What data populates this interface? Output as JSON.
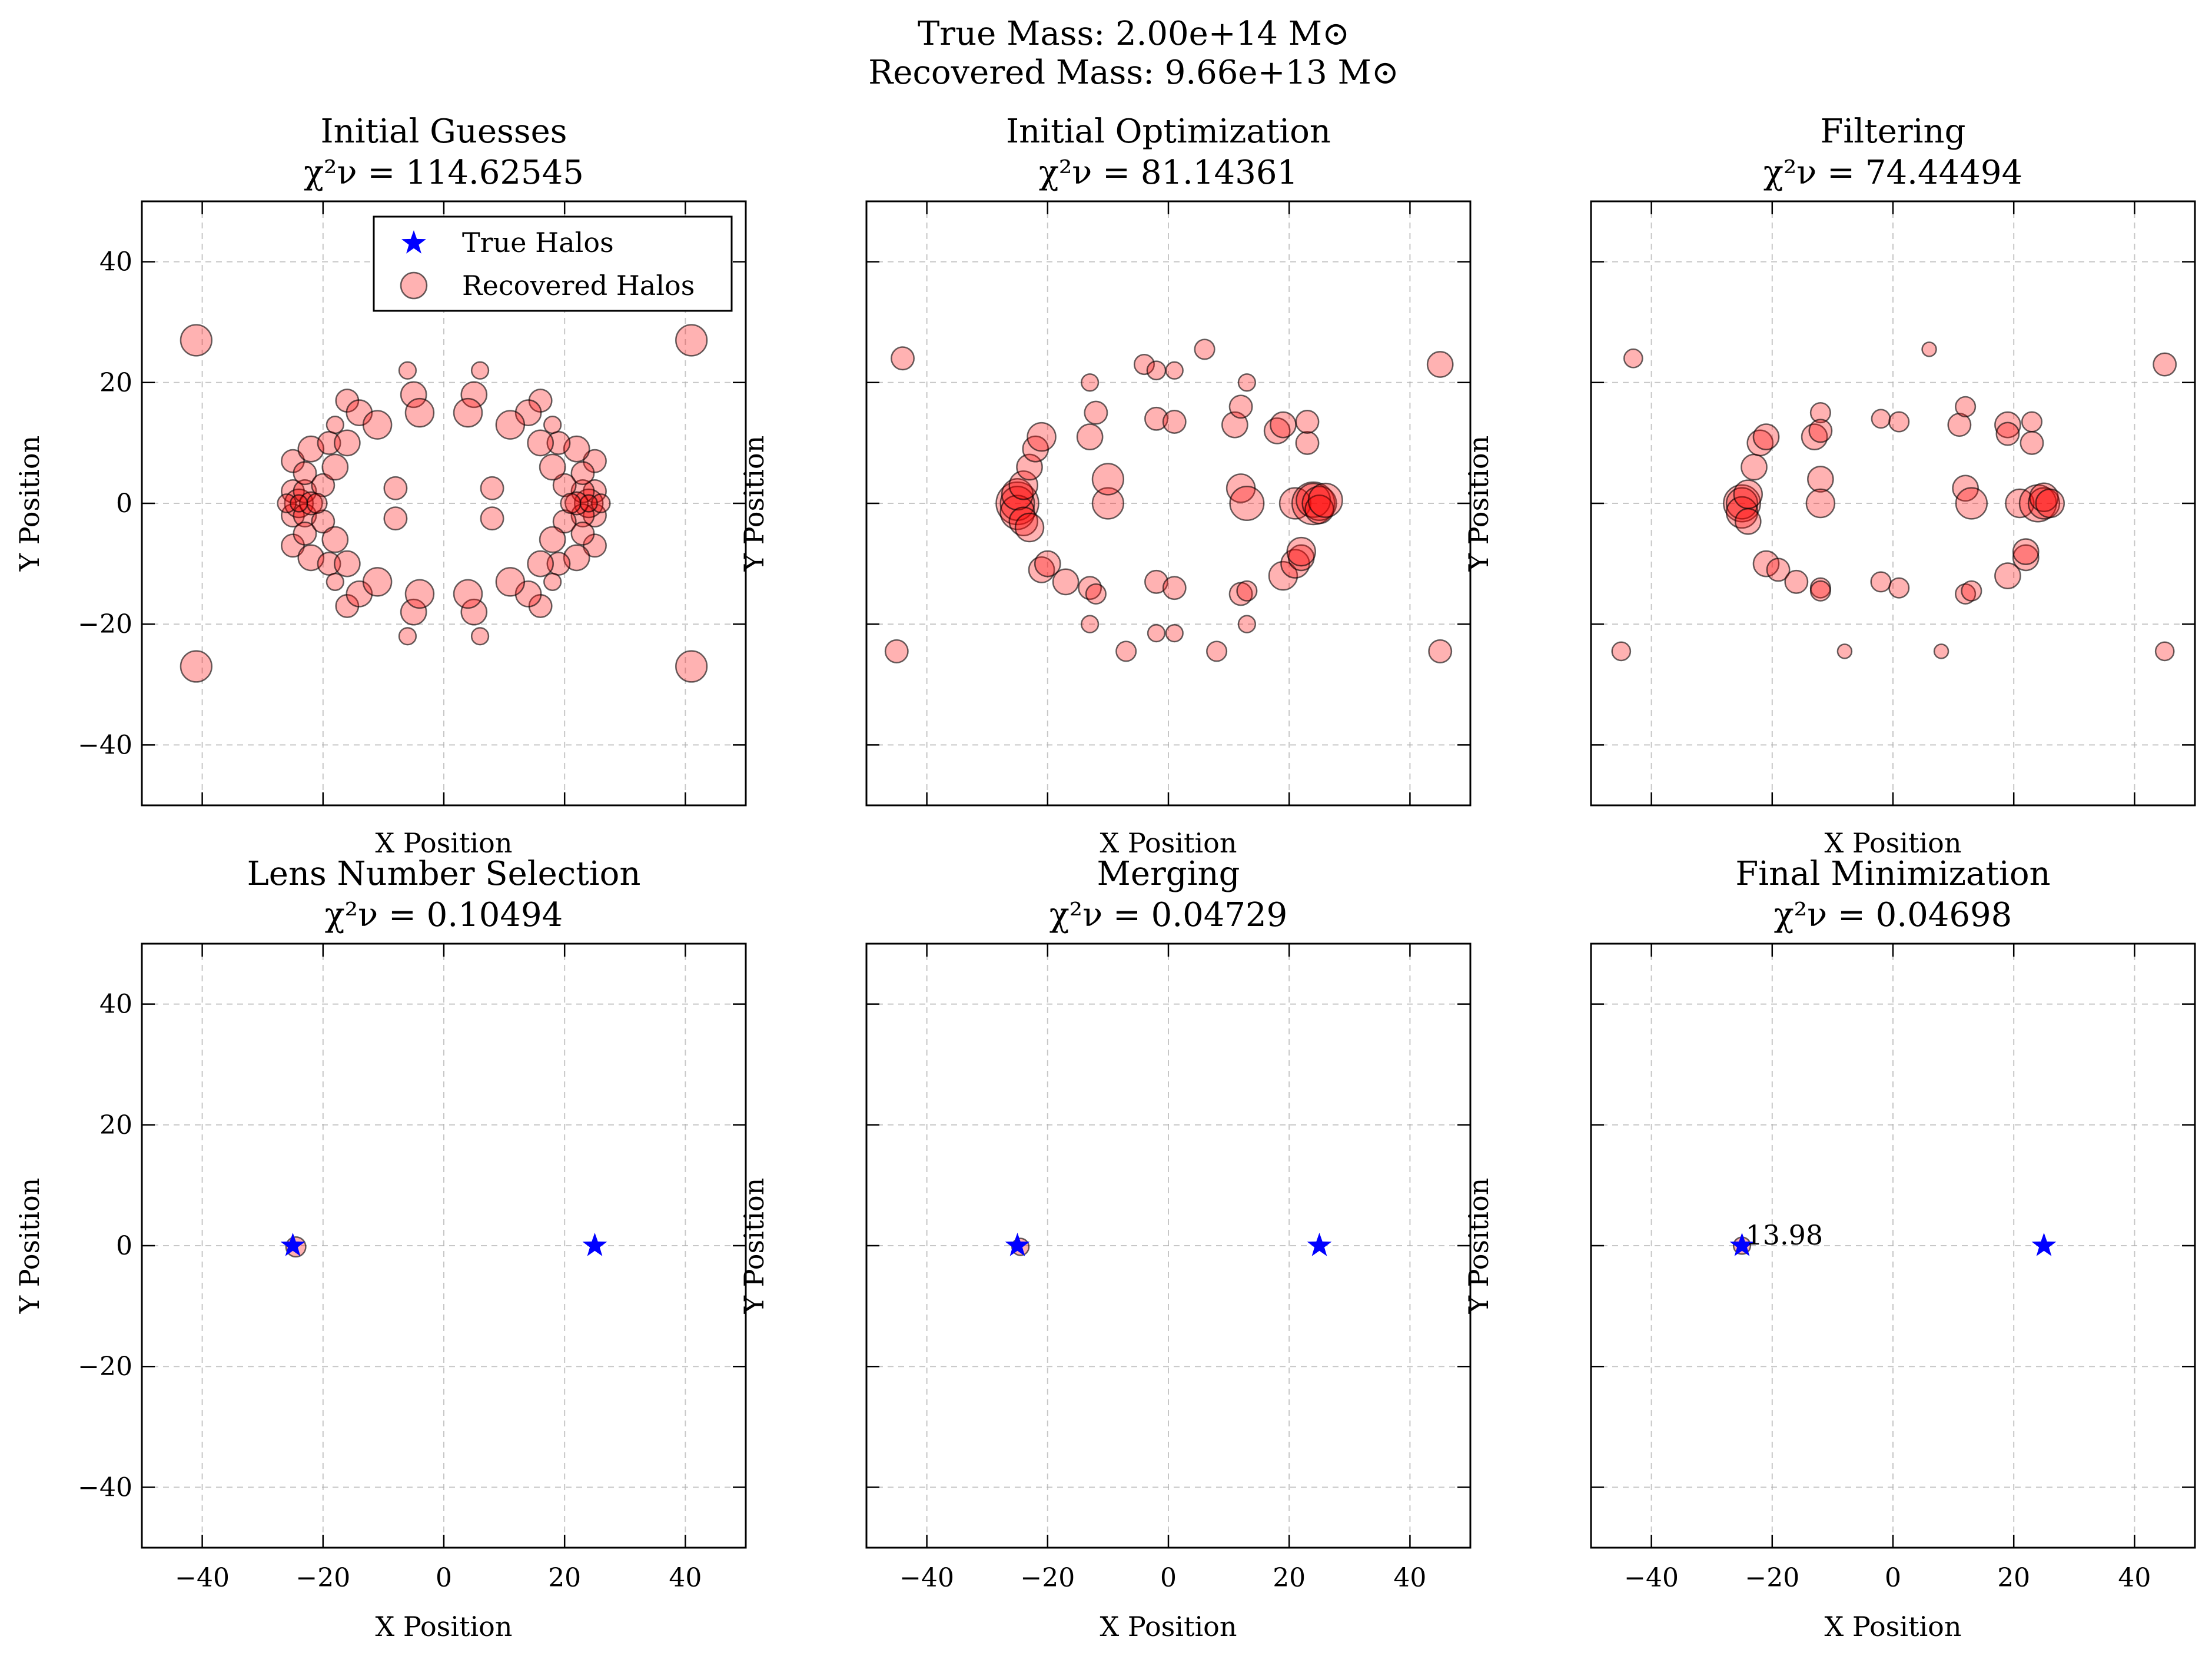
{
  "figure": {
    "suptitle_line1": "True Mass: 2.00e+14 M⊙",
    "suptitle_line2": "Recovered Mass: 9.66e+13 M⊙"
  },
  "colors": {
    "true_halo": "#0000ff",
    "recovered_halo_fill": "#ff0000",
    "recovered_halo_edge": "#000000",
    "grid": "#b0b0b0"
  },
  "legend": {
    "true_label": "True Halos",
    "recovered_label": "Recovered Halos"
  },
  "chart_data": [
    {
      "type": "scatter",
      "title": "Initial Guesses",
      "chi2_label": "χ²ν = 114.62545",
      "xlabel": "X Position",
      "ylabel": "Y Position",
      "xlim": [
        -50,
        50
      ],
      "ylim": [
        -50,
        50
      ],
      "xticks": [
        -40,
        -20,
        0,
        20,
        40
      ],
      "yticks": [
        -40,
        -20,
        0,
        20,
        40
      ],
      "show_xticklabels": false,
      "show_yticklabels": true,
      "grid": true,
      "legend": "top-right",
      "true_halos": [],
      "annotations": [],
      "recovered_halos": [
        [
          -41,
          27,
          2.2
        ],
        [
          -41,
          -27,
          2.2
        ],
        [
          41,
          27,
          2.2
        ],
        [
          41,
          -27,
          2.2
        ],
        [
          -25,
          2,
          1.6
        ],
        [
          -25,
          -2,
          1.6
        ],
        [
          -24,
          0,
          2
        ],
        [
          -23,
          2,
          1.6
        ],
        [
          -23,
          -2,
          1.6
        ],
        [
          -22,
          0,
          1.6
        ],
        [
          -26,
          0,
          1.3
        ],
        [
          -25,
          7,
          1.6
        ],
        [
          -25,
          -7,
          1.6
        ],
        [
          -23,
          5,
          1.6
        ],
        [
          -23,
          -5,
          1.6
        ],
        [
          -22,
          9,
          1.8
        ],
        [
          -22,
          -9,
          1.8
        ],
        [
          -20,
          3,
          1.6
        ],
        [
          -20,
          -3,
          1.6
        ],
        [
          -19,
          10,
          1.6
        ],
        [
          -19,
          -10,
          1.6
        ],
        [
          -18,
          6,
          1.8
        ],
        [
          -18,
          -6,
          1.8
        ],
        [
          -18,
          13,
          1.2
        ],
        [
          -18,
          -13,
          1.2
        ],
        [
          -16,
          17,
          1.6
        ],
        [
          -16,
          -17,
          1.6
        ],
        [
          -16,
          10,
          1.8
        ],
        [
          -16,
          -10,
          1.8
        ],
        [
          -14,
          15,
          1.8
        ],
        [
          -14,
          -15,
          1.8
        ],
        [
          -11,
          13,
          2
        ],
        [
          -11,
          -13,
          2
        ],
        [
          -8,
          2.5,
          1.6
        ],
        [
          -8,
          -2.5,
          1.6
        ],
        [
          -6,
          22,
          1.2
        ],
        [
          -6,
          -22,
          1.2
        ],
        [
          -5,
          18,
          1.8
        ],
        [
          -5,
          -18,
          1.8
        ],
        [
          -4,
          15,
          2
        ],
        [
          -4,
          -15,
          2
        ],
        [
          25,
          2,
          1.6
        ],
        [
          25,
          -2,
          1.6
        ],
        [
          24,
          0,
          2
        ],
        [
          23,
          2,
          1.6
        ],
        [
          23,
          -2,
          1.6
        ],
        [
          22,
          0,
          1.6
        ],
        [
          26,
          0,
          1.3
        ],
        [
          25,
          7,
          1.6
        ],
        [
          25,
          -7,
          1.6
        ],
        [
          23,
          5,
          1.6
        ],
        [
          23,
          -5,
          1.6
        ],
        [
          22,
          9,
          1.8
        ],
        [
          22,
          -9,
          1.8
        ],
        [
          20,
          3,
          1.6
        ],
        [
          20,
          -3,
          1.6
        ],
        [
          19,
          10,
          1.6
        ],
        [
          19,
          -10,
          1.6
        ],
        [
          18,
          6,
          1.8
        ],
        [
          18,
          -6,
          1.8
        ],
        [
          18,
          13,
          1.2
        ],
        [
          18,
          -13,
          1.2
        ],
        [
          16,
          17,
          1.6
        ],
        [
          16,
          -17,
          1.6
        ],
        [
          16,
          10,
          1.8
        ],
        [
          16,
          -10,
          1.8
        ],
        [
          14,
          15,
          1.8
        ],
        [
          14,
          -15,
          1.8
        ],
        [
          11,
          13,
          2
        ],
        [
          11,
          -13,
          2
        ],
        [
          8,
          2.5,
          1.6
        ],
        [
          8,
          -2.5,
          1.6
        ],
        [
          6,
          22,
          1.2
        ],
        [
          6,
          -22,
          1.2
        ],
        [
          5,
          18,
          1.8
        ],
        [
          5,
          -18,
          1.8
        ],
        [
          4,
          15,
          2
        ],
        [
          4,
          -15,
          2
        ],
        [
          -21,
          0,
          1.4
        ],
        [
          21,
          0,
          1.4
        ],
        [
          -24,
          0,
          1.2
        ],
        [
          24,
          0,
          1.2
        ]
      ]
    },
    {
      "type": "scatter",
      "title": "Initial Optimization",
      "chi2_label": "χ²ν = 81.14361",
      "xlabel": "X Position",
      "ylabel": "Y Position",
      "xlim": [
        -50,
        50
      ],
      "ylim": [
        -50,
        50
      ],
      "xticks": [
        -40,
        -20,
        0,
        20,
        40
      ],
      "yticks": [
        -40,
        -20,
        0,
        20,
        40
      ],
      "show_xticklabels": false,
      "show_yticklabels": false,
      "grid": true,
      "legend": "none",
      "true_halos": [],
      "annotations": [],
      "recovered_halos": [
        [
          -44,
          24,
          1.6
        ],
        [
          -45,
          -24.5,
          1.6
        ],
        [
          45,
          23,
          1.8
        ],
        [
          45,
          -24.5,
          1.6
        ],
        [
          -25,
          0,
          3
        ],
        [
          -25,
          0,
          2.4
        ],
        [
          -25,
          -1.5,
          2.4
        ],
        [
          -25,
          1.5,
          2.2
        ],
        [
          -24,
          -3,
          2
        ],
        [
          -24,
          3,
          2
        ],
        [
          -23,
          -4,
          2
        ],
        [
          -23,
          6,
          1.8
        ],
        [
          -22,
          9,
          1.8
        ],
        [
          -21,
          11,
          2
        ],
        [
          -21,
          -11,
          1.8
        ],
        [
          -20,
          -10,
          1.8
        ],
        [
          -17,
          -13,
          1.8
        ],
        [
          -13,
          11,
          1.8
        ],
        [
          -13,
          -14,
          1.6
        ],
        [
          -13,
          20,
          1.2
        ],
        [
          -13,
          -20,
          1.2
        ],
        [
          -12,
          15,
          1.6
        ],
        [
          -12,
          -15,
          1.4
        ],
        [
          -10,
          0,
          2.2
        ],
        [
          -10,
          4,
          2.2
        ],
        [
          -7,
          -24.5,
          1.4
        ],
        [
          -4,
          23,
          1.4
        ],
        [
          -2,
          22,
          1.3
        ],
        [
          -2,
          14,
          1.6
        ],
        [
          -2,
          -13,
          1.6
        ],
        [
          -2,
          -21.5,
          1.2
        ],
        [
          1,
          22,
          1.2
        ],
        [
          1,
          13.5,
          1.6
        ],
        [
          1,
          -14,
          1.6
        ],
        [
          1,
          -21.5,
          1.2
        ],
        [
          6,
          25.5,
          1.4
        ],
        [
          8,
          -24.5,
          1.4
        ],
        [
          11,
          13,
          1.8
        ],
        [
          12,
          16,
          1.6
        ],
        [
          12,
          -15,
          1.6
        ],
        [
          13,
          -14.5,
          1.4
        ],
        [
          13,
          20,
          1.2
        ],
        [
          13,
          -20,
          1.2
        ],
        [
          12,
          2.5,
          2
        ],
        [
          13,
          0,
          2.4
        ],
        [
          18,
          12,
          1.8
        ],
        [
          19,
          13,
          1.8
        ],
        [
          19,
          -12,
          2
        ],
        [
          21,
          0,
          2.2
        ],
        [
          21,
          -10,
          2
        ],
        [
          22,
          -9,
          1.8
        ],
        [
          22,
          -8,
          2
        ],
        [
          23,
          10,
          1.6
        ],
        [
          23,
          13.5,
          1.6
        ],
        [
          24,
          0,
          3
        ],
        [
          24,
          0.5,
          2.4
        ],
        [
          25,
          0,
          2.4
        ],
        [
          25,
          -1,
          2
        ],
        [
          26,
          0.5,
          2.4
        ]
      ]
    },
    {
      "type": "scatter",
      "title": "Filtering",
      "chi2_label": "χ²ν = 74.44494",
      "xlabel": "X Position",
      "ylabel": "Y Position",
      "xlim": [
        -50,
        50
      ],
      "ylim": [
        -50,
        50
      ],
      "xticks": [
        -40,
        -20,
        0,
        20,
        40
      ],
      "yticks": [
        -40,
        -20,
        0,
        20,
        40
      ],
      "show_xticklabels": false,
      "show_yticklabels": false,
      "grid": true,
      "legend": "none",
      "true_halos": [],
      "annotations": [],
      "recovered_halos": [
        [
          -43,
          24,
          1.3
        ],
        [
          -45,
          -24.5,
          1.3
        ],
        [
          45,
          23,
          1.6
        ],
        [
          45,
          -24.5,
          1.3
        ],
        [
          -25,
          0,
          2.6
        ],
        [
          -25,
          0,
          2.2
        ],
        [
          -25,
          -1.5,
          2.2
        ],
        [
          -24,
          1.5,
          2
        ],
        [
          -24,
          -3,
          1.8
        ],
        [
          -23,
          6,
          1.8
        ],
        [
          -22,
          10,
          1.8
        ],
        [
          -21,
          11,
          1.8
        ],
        [
          -21,
          -10,
          1.8
        ],
        [
          -19,
          -11,
          1.6
        ],
        [
          -16,
          -13,
          1.6
        ],
        [
          -13,
          11,
          1.8
        ],
        [
          -12,
          15,
          1.4
        ],
        [
          -12,
          12,
          1.6
        ],
        [
          -12,
          -14,
          1.4
        ],
        [
          -12,
          -14.5,
          1.4
        ],
        [
          -12,
          4,
          1.8
        ],
        [
          -12,
          0,
          2
        ],
        [
          -8,
          -24.5,
          1
        ],
        [
          -2,
          14,
          1.3
        ],
        [
          -2,
          -13,
          1.4
        ],
        [
          1,
          13.5,
          1.4
        ],
        [
          1,
          -14,
          1.4
        ],
        [
          6,
          25.5,
          1
        ],
        [
          8,
          -24.5,
          1
        ],
        [
          11,
          13,
          1.6
        ],
        [
          12,
          16,
          1.4
        ],
        [
          12,
          2.5,
          1.8
        ],
        [
          13,
          0,
          2.2
        ],
        [
          12,
          -15,
          1.4
        ],
        [
          13,
          -14.5,
          1.4
        ],
        [
          19,
          13,
          1.8
        ],
        [
          19,
          11.5,
          1.6
        ],
        [
          19,
          -12,
          1.8
        ],
        [
          21,
          0,
          2
        ],
        [
          22,
          -9,
          1.8
        ],
        [
          22,
          -8,
          1.8
        ],
        [
          23,
          10,
          1.6
        ],
        [
          23,
          13.5,
          1.4
        ],
        [
          24,
          0,
          2.6
        ],
        [
          25,
          0,
          2.2
        ],
        [
          25,
          1,
          2
        ],
        [
          26,
          0,
          2
        ]
      ]
    },
    {
      "type": "scatter",
      "title": "Lens Number Selection",
      "chi2_label": "χ²ν = 0.10494",
      "xlabel": "X Position",
      "ylabel": "Y Position",
      "xlim": [
        -50,
        50
      ],
      "ylim": [
        -50,
        50
      ],
      "xticks": [
        -40,
        -20,
        0,
        20,
        40
      ],
      "yticks": [
        -40,
        -20,
        0,
        20,
        40
      ],
      "show_xticklabels": true,
      "show_yticklabels": true,
      "grid": true,
      "legend": "none",
      "true_halos": [
        [
          -25,
          0
        ],
        [
          25,
          0
        ]
      ],
      "annotations": [],
      "recovered_halos": [
        [
          -24.5,
          -0.2,
          1.4
        ]
      ]
    },
    {
      "type": "scatter",
      "title": "Merging",
      "chi2_label": "χ²ν = 0.04729",
      "xlabel": "X Position",
      "ylabel": "Y Position",
      "xlim": [
        -50,
        50
      ],
      "ylim": [
        -50,
        50
      ],
      "xticks": [
        -40,
        -20,
        0,
        20,
        40
      ],
      "yticks": [
        -40,
        -20,
        0,
        20,
        40
      ],
      "show_xticklabels": true,
      "show_yticklabels": false,
      "grid": true,
      "legend": "none",
      "true_halos": [
        [
          -25,
          0
        ],
        [
          25,
          0
        ]
      ],
      "annotations": [],
      "recovered_halos": [
        [
          -24.5,
          -0.2,
          1.2
        ]
      ]
    },
    {
      "type": "scatter",
      "title": "Final Minimization",
      "chi2_label": "χ²ν = 0.04698",
      "xlabel": "X Position",
      "ylabel": "Y Position",
      "xlim": [
        -50,
        50
      ],
      "ylim": [
        -50,
        50
      ],
      "xticks": [
        -40,
        -20,
        0,
        20,
        40
      ],
      "yticks": [
        -40,
        -20,
        0,
        20,
        40
      ],
      "show_xticklabels": true,
      "show_yticklabels": false,
      "grid": true,
      "legend": "none",
      "true_halos": [
        [
          -25,
          0
        ],
        [
          25,
          0
        ]
      ],
      "annotations": [
        {
          "x": -25,
          "y": 0,
          "text": "13.98"
        }
      ],
      "recovered_halos": [
        [
          -25,
          0,
          1.2
        ]
      ]
    }
  ]
}
